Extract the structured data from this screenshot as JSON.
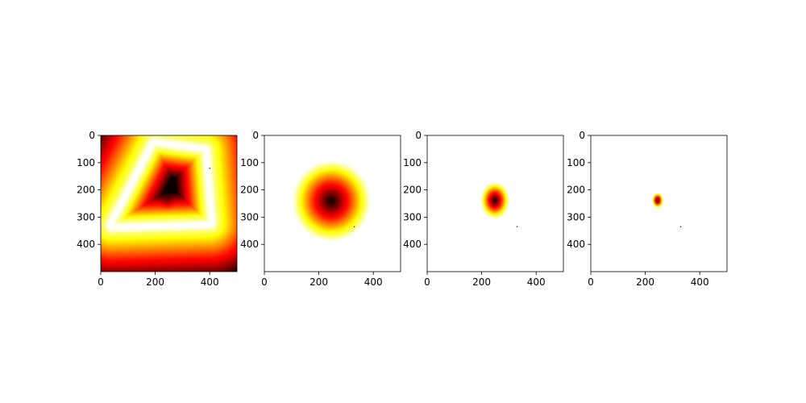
{
  "chart_data": [
    {
      "type": "heatmap",
      "colormap": "hot",
      "pattern": "quad-ring",
      "xlim": [
        0,
        500
      ],
      "ylim": [
        500,
        0
      ],
      "xticks": [
        0,
        200,
        400
      ],
      "yticks": [
        0,
        100,
        200,
        300,
        400
      ],
      "xtick_labels": [
        "0",
        "200",
        "400"
      ],
      "ytick_labels": [
        "0",
        "100",
        "200",
        "300",
        "400"
      ],
      "quad": [
        [
          195,
          30
        ],
        [
          380,
          55
        ],
        [
          400,
          320
        ],
        [
          40,
          330
        ]
      ],
      "marker": [
        400,
        120
      ]
    },
    {
      "type": "heatmap",
      "colormap": "hot",
      "pattern": "blob",
      "xlim": [
        0,
        500
      ],
      "ylim": [
        500,
        0
      ],
      "xticks": [
        0,
        200,
        400
      ],
      "yticks": [
        0,
        100,
        200,
        300,
        400
      ],
      "xtick_labels": [
        "0",
        "200",
        "400"
      ],
      "ytick_labels": [
        "0",
        "100",
        "200",
        "300",
        "400"
      ],
      "center": [
        245,
        240
      ],
      "sigma": [
        150,
        155
      ],
      "marker": [
        330,
        335
      ]
    },
    {
      "type": "heatmap",
      "colormap": "hot",
      "pattern": "blob",
      "xlim": [
        0,
        500
      ],
      "ylim": [
        500,
        0
      ],
      "xticks": [
        0,
        200,
        400
      ],
      "yticks": [
        0,
        100,
        200,
        300,
        400
      ],
      "xtick_labels": [
        "0",
        "200",
        "400"
      ],
      "ytick_labels": [
        "0",
        "100",
        "200",
        "300",
        "400"
      ],
      "center": [
        248,
        238
      ],
      "sigma": [
        55,
        70
      ],
      "marker": [
        330,
        335
      ]
    },
    {
      "type": "heatmap",
      "colormap": "hot",
      "pattern": "blob",
      "xlim": [
        0,
        500
      ],
      "ylim": [
        500,
        0
      ],
      "xticks": [
        0,
        200,
        400
      ],
      "yticks": [
        0,
        100,
        200,
        300,
        400
      ],
      "xtick_labels": [
        "0",
        "200",
        "400"
      ],
      "ytick_labels": [
        "0",
        "100",
        "200",
        "300",
        "400"
      ],
      "center": [
        245,
        238
      ],
      "sigma": [
        22,
        30
      ],
      "marker": [
        330,
        335
      ]
    }
  ]
}
